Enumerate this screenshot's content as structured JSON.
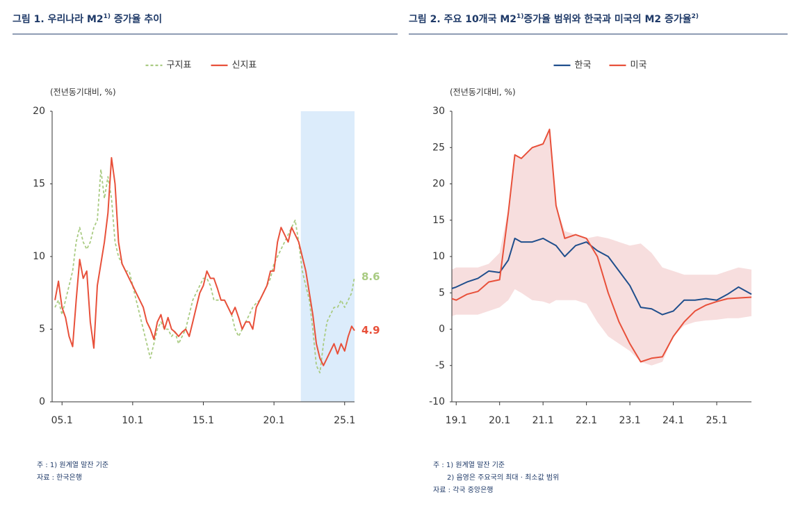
{
  "chart_data": [
    {
      "type": "line",
      "title_parts": [
        "그림 1. 우리나라 M2",
        "1)",
        " 증가율 추이"
      ],
      "ylabel": "(전년동기대비, %)",
      "xlim": [
        2004.3,
        2025.7
      ],
      "xticks": [
        {
          "value": 2005,
          "label": "05.1"
        },
        {
          "value": 2010,
          "label": "10.1"
        },
        {
          "value": 2015,
          "label": "15.1"
        },
        {
          "value": 2020,
          "label": "20.1"
        },
        {
          "value": 2025,
          "label": "25.1"
        }
      ],
      "ylim": [
        0,
        20
      ],
      "yticks": [
        0,
        5,
        10,
        15,
        20
      ],
      "highlight_x": [
        2021.9,
        2025.7
      ],
      "highlight_color": "#dcecfb",
      "end_labels": true,
      "x": [
        2004.5,
        2004.75,
        2005,
        2005.25,
        2005.5,
        2005.75,
        2006,
        2006.25,
        2006.5,
        2006.75,
        2007,
        2007.25,
        2007.5,
        2007.75,
        2008,
        2008.25,
        2008.5,
        2008.75,
        2009,
        2009.25,
        2009.5,
        2009.75,
        2010,
        2010.25,
        2010.5,
        2010.75,
        2011,
        2011.25,
        2011.5,
        2011.75,
        2012,
        2012.25,
        2012.5,
        2012.75,
        2013,
        2013.25,
        2013.5,
        2013.75,
        2014,
        2014.25,
        2014.5,
        2014.75,
        2015,
        2015.25,
        2015.5,
        2015.75,
        2016,
        2016.25,
        2016.5,
        2016.75,
        2017,
        2017.25,
        2017.5,
        2017.75,
        2018,
        2018.25,
        2018.5,
        2018.75,
        2019,
        2019.25,
        2019.5,
        2019.75,
        2020,
        2020.25,
        2020.5,
        2020.75,
        2021,
        2021.25,
        2021.5,
        2021.75,
        2022,
        2022.25,
        2022.5,
        2022.75,
        2023,
        2023.25,
        2023.5,
        2023.75,
        2024,
        2024.25,
        2024.5,
        2024.75,
        2025,
        2025.25,
        2025.5,
        2025.7
      ],
      "series": [
        {
          "name": "구지표",
          "color": "#a9cb82",
          "dash": true,
          "values": [
            6.5,
            7,
            6,
            7,
            8,
            9,
            11,
            12,
            11,
            10.5,
            11,
            12,
            12.5,
            16,
            14,
            15.5,
            14,
            11,
            10,
            9.5,
            9,
            9,
            8,
            7,
            6,
            5,
            4,
            3,
            4,
            5,
            5.5,
            5,
            5,
            4.5,
            4.8,
            4,
            4.5,
            5,
            6,
            7,
            7.5,
            8,
            8.5,
            8.5,
            8,
            7,
            7,
            7,
            7,
            6.5,
            6,
            5,
            4.5,
            5,
            5.5,
            6,
            6.5,
            6.8,
            7,
            7.5,
            8,
            8.5,
            9.5,
            10,
            10.5,
            11,
            11.5,
            12,
            12.5,
            11,
            9,
            8,
            7,
            5,
            2.5,
            2,
            4,
            5.5,
            6,
            6.5,
            6.5,
            7,
            6.5,
            7,
            7.5,
            8.6
          ]
        },
        {
          "name": "신지표",
          "color": "#e8503a",
          "dash": false,
          "values": [
            7,
            8.3,
            6.5,
            5.8,
            4.5,
            3.8,
            7,
            9.8,
            8.5,
            9,
            5.5,
            3.7,
            8,
            9.5,
            11,
            13,
            16.8,
            15,
            11,
            9.5,
            9,
            8.5,
            8,
            7.5,
            7,
            6.5,
            5.5,
            5,
            4.3,
            5.5,
            6,
            5,
            5.8,
            5,
            4.8,
            4.5,
            4.8,
            5,
            4.5,
            5.5,
            6.5,
            7.5,
            8,
            9,
            8.5,
            8.5,
            7.8,
            7,
            7,
            6.5,
            6,
            6.5,
            5.8,
            5,
            5.5,
            5.5,
            5,
            6.5,
            7,
            7.5,
            8,
            9,
            9,
            11,
            12,
            11.5,
            11,
            12,
            11.5,
            11,
            10,
            9,
            7.5,
            6,
            4,
            3,
            2.5,
            3,
            3.5,
            4,
            3.3,
            4,
            3.5,
            4.5,
            5.2,
            4.9
          ]
        }
      ],
      "notes": [
        "주 : 1) 원계열 말잔 기준",
        "자료 : 한국은행"
      ]
    },
    {
      "type": "line",
      "title_parts": [
        "그림 2. 주요 10개국 M2",
        "1)",
        "증가율 범위와 한국과 미국의 M2 증가율",
        "2)"
      ],
      "ylabel": "(전년동기대비, %)",
      "xlim": [
        2018.9,
        2025.8
      ],
      "xticks": [
        {
          "value": 2019,
          "label": "19.1"
        },
        {
          "value": 2020,
          "label": "20.1"
        },
        {
          "value": 2021,
          "label": "21.1"
        },
        {
          "value": 2022,
          "label": "22.1"
        },
        {
          "value": 2023,
          "label": "23.1"
        },
        {
          "value": 2024,
          "label": "24.1"
        },
        {
          "value": 2025,
          "label": "25.1"
        }
      ],
      "ylim": [
        -10,
        30
      ],
      "yticks": [
        -10,
        -5,
        0,
        5,
        10,
        15,
        20,
        25,
        30
      ],
      "end_labels": false,
      "x": [
        2018.9,
        2019,
        2019.25,
        2019.5,
        2019.75,
        2020,
        2020.2,
        2020.35,
        2020.5,
        2020.75,
        2021,
        2021.15,
        2021.3,
        2021.5,
        2021.75,
        2022,
        2022.25,
        2022.5,
        2022.75,
        2023,
        2023.25,
        2023.5,
        2023.75,
        2024,
        2024.25,
        2024.5,
        2024.75,
        2025,
        2025.25,
        2025.5,
        2025.8
      ],
      "band": {
        "color": "#f7dede",
        "upper": [
          8.2,
          8.5,
          8.5,
          8.5,
          9,
          10.5,
          16.5,
          24,
          23.5,
          25,
          25.5,
          27.5,
          17,
          13.5,
          13,
          12.5,
          12.8,
          12.5,
          12,
          11.5,
          11.8,
          10.5,
          8.5,
          8,
          7.5,
          7.5,
          7.5,
          7.5,
          8,
          8.5,
          8.2
        ],
        "lower": [
          1.8,
          2,
          2,
          2,
          2.5,
          3,
          4,
          5.5,
          5,
          4,
          3.8,
          3.5,
          4,
          4,
          4,
          3.5,
          1,
          -1,
          -2,
          -3,
          -4.5,
          -5,
          -4.5,
          -1,
          0.5,
          1,
          1.2,
          1.3,
          1.5,
          1.5,
          1.8
        ]
      },
      "series": [
        {
          "name": "한국",
          "color": "#1f4e8c",
          "dash": false,
          "values": [
            5.6,
            5.8,
            6.5,
            7,
            8,
            7.8,
            9.5,
            12.5,
            12,
            12,
            12.5,
            12,
            11.5,
            10,
            11.5,
            12,
            10.8,
            10,
            8,
            6,
            3,
            2.8,
            2,
            2.5,
            4,
            4,
            4.2,
            4,
            4.8,
            5.8,
            4.8
          ]
        },
        {
          "name": "미국",
          "color": "#e8503a",
          "dash": false,
          "values": [
            4.2,
            4,
            4.8,
            5.2,
            6.5,
            6.8,
            16,
            24,
            23.5,
            25,
            25.5,
            27.5,
            17,
            12.5,
            13,
            12.5,
            10,
            5,
            1,
            -2,
            -4.5,
            -4,
            -3.8,
            -1,
            1,
            2.5,
            3.3,
            3.8,
            4.2,
            4.3,
            4.4
          ]
        }
      ],
      "notes": [
        "주 : 1) 원계열 말잔 기준",
        "2) 음영은 주요국의 최대 · 최소값 범위",
        "자료 : 각국 중앙은행"
      ]
    }
  ]
}
